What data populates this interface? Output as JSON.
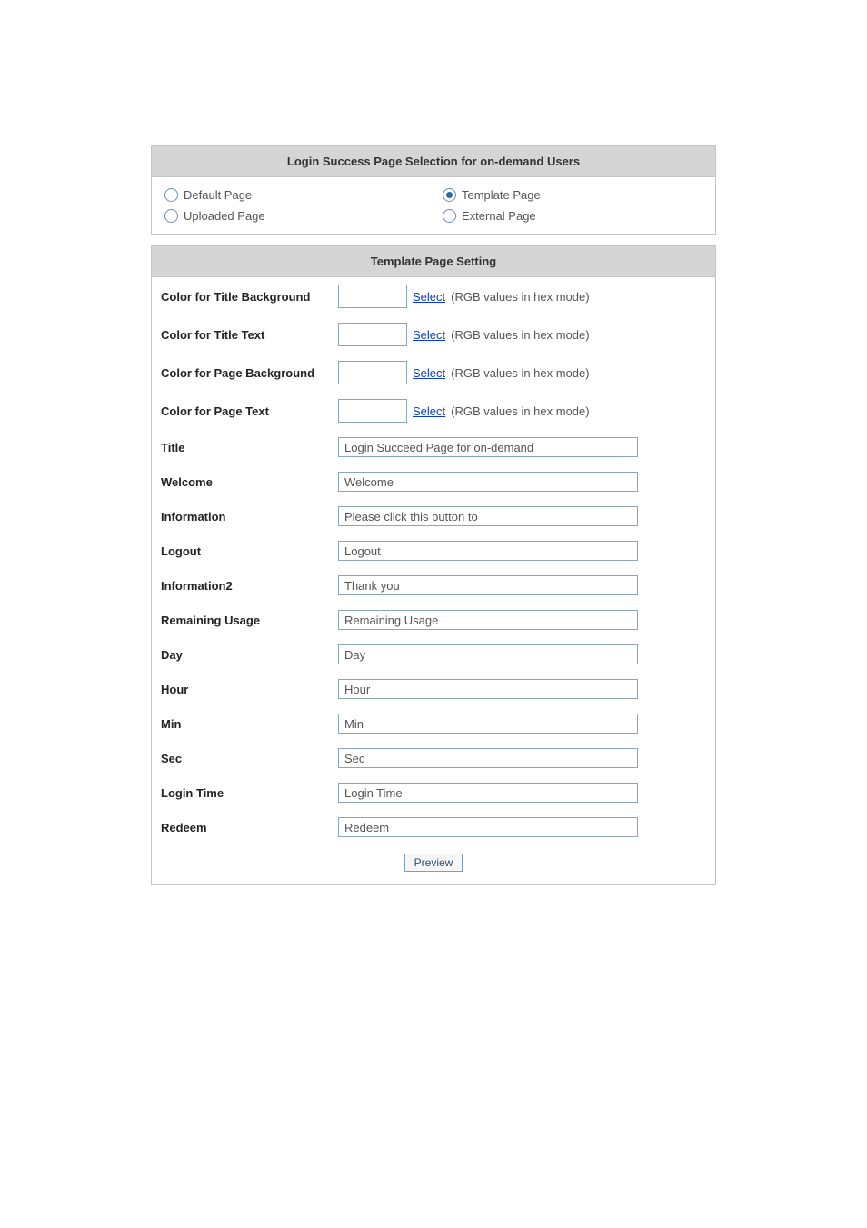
{
  "selection": {
    "header": "Login Success Page Selection for on-demand Users",
    "options": {
      "default": {
        "label": "Default Page",
        "selected": false
      },
      "template": {
        "label": "Template Page",
        "selected": true
      },
      "uploaded": {
        "label": "Uploaded Page",
        "selected": false
      },
      "external": {
        "label": "External Page",
        "selected": false
      }
    }
  },
  "template": {
    "header": "Template Page Setting",
    "select_link": "Select",
    "hex_hint": "(RGB values in hex mode)",
    "color_rows": [
      {
        "key": "title_bg",
        "label": "Color for Title Background",
        "value": ""
      },
      {
        "key": "title_text",
        "label": "Color for Title Text",
        "value": ""
      },
      {
        "key": "page_bg",
        "label": "Color for Page Background",
        "value": ""
      },
      {
        "key": "page_text",
        "label": "Color for Page Text",
        "value": ""
      }
    ],
    "text_rows": [
      {
        "key": "title",
        "label": "Title",
        "value": "Login Succeed Page for on-demand"
      },
      {
        "key": "welcome",
        "label": "Welcome",
        "value": "Welcome"
      },
      {
        "key": "information",
        "label": "Information",
        "value": "Please click this button to"
      },
      {
        "key": "logout",
        "label": "Logout",
        "value": "Logout"
      },
      {
        "key": "information2",
        "label": "Information2",
        "value": "Thank you"
      },
      {
        "key": "remaining",
        "label": "Remaining Usage",
        "value": "Remaining Usage"
      },
      {
        "key": "day",
        "label": "Day",
        "value": "Day"
      },
      {
        "key": "hour",
        "label": "Hour",
        "value": "Hour"
      },
      {
        "key": "min",
        "label": "Min",
        "value": "Min"
      },
      {
        "key": "sec",
        "label": "Sec",
        "value": "Sec"
      },
      {
        "key": "login_time",
        "label": "Login Time",
        "value": "Login Time"
      },
      {
        "key": "redeem",
        "label": "Redeem",
        "value": "Redeem"
      }
    ],
    "preview_label": "Preview"
  },
  "style": {
    "panel_border": "#c4c4c4",
    "header_bg": "#d5d5d5",
    "input_border": "#8aa5c2",
    "link_color": "#0b3fbf",
    "text_color": "#333333",
    "label_color": "#232323",
    "hint_color": "#555555",
    "radio_border": "#6a8db6",
    "radio_dot": "#2a6aa8",
    "button_border": "#7f9db9",
    "button_text": "#2a4d7a",
    "background": "#ffffff"
  }
}
